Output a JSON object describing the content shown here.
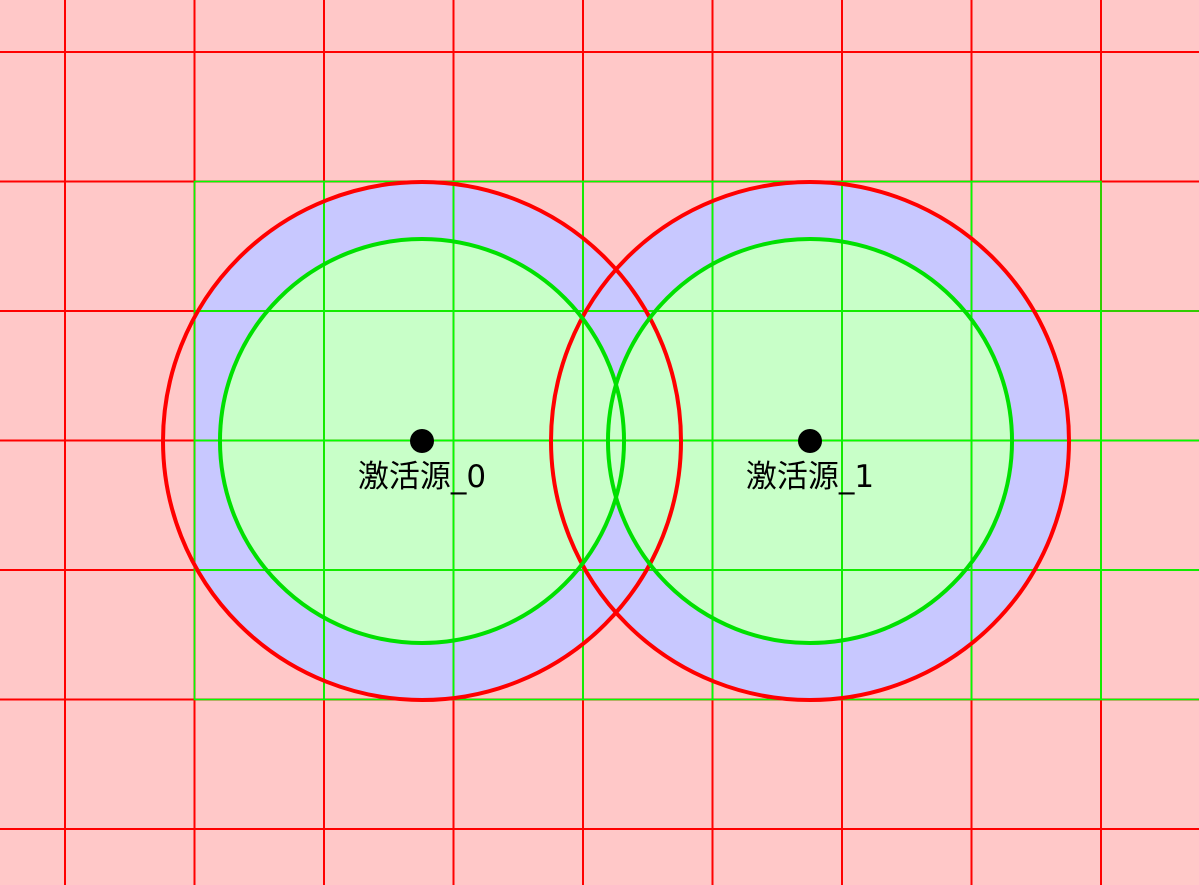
{
  "colors": {
    "background": "#ffc8c8",
    "grid_line": "#ff0000",
    "covered_cell_border": "#00ff00",
    "outer_band_fill": "#c8c8ff",
    "inner_disc_fill": "#c8ffc8",
    "outer_ring_stroke": "#ff0000",
    "inner_ring_stroke": "#00e000",
    "source_dot": "#000000"
  },
  "sources": [
    {
      "label": "激活源_0",
      "grid_cell": [
        3,
        3
      ]
    },
    {
      "label": "激活源_1",
      "grid_cell": [
        6,
        3
      ]
    }
  ],
  "ring_ratio": {
    "outer": 2,
    "inner": 1.56
  },
  "covered_cells": [
    [
      1,
      1
    ],
    [
      2,
      1
    ],
    [
      3,
      1
    ],
    [
      4,
      1
    ],
    [
      5,
      1
    ],
    [
      6,
      1
    ],
    [
      7,
      1
    ],
    [
      1,
      2
    ],
    [
      2,
      2
    ],
    [
      3,
      2
    ],
    [
      4,
      2
    ],
    [
      5,
      2
    ],
    [
      6,
      2
    ],
    [
      7,
      2
    ],
    [
      8,
      2
    ],
    [
      1,
      3
    ],
    [
      2,
      3
    ],
    [
      3,
      3
    ],
    [
      4,
      3
    ],
    [
      5,
      3
    ],
    [
      6,
      3
    ],
    [
      7,
      3
    ],
    [
      8,
      3
    ],
    [
      1,
      4
    ],
    [
      2,
      4
    ],
    [
      3,
      4
    ],
    [
      4,
      4
    ],
    [
      5,
      4
    ],
    [
      6,
      4
    ],
    [
      7,
      4
    ],
    [
      8,
      4
    ]
  ]
}
